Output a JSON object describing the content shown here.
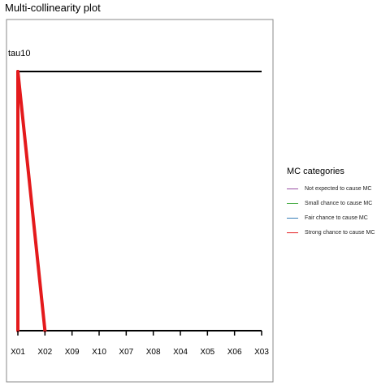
{
  "title": "Multi-collinearity plot",
  "colors": {
    "panel_border": "#888888",
    "axis": "#000000"
  },
  "chart_data": {
    "type": "line",
    "title": "Multi-collinearity plot",
    "top_label": "tau10",
    "categories": [
      "X01",
      "X02",
      "X09",
      "X10",
      "X07",
      "X08",
      "X04",
      "X05",
      "X06",
      "X03"
    ],
    "ylim": [
      0,
      1
    ],
    "grid": false,
    "legend_position": "right",
    "legend": {
      "title": "MC categories",
      "items": [
        {
          "label": "Not expected to cause MC",
          "color": "#984ea3"
        },
        {
          "label": "Small chance to cause MC",
          "color": "#4daf4a"
        },
        {
          "label": "Fair chance to cause MC",
          "color": "#377eb8"
        },
        {
          "label": "Strong chance to cause MC",
          "color": "#e41a1c"
        }
      ]
    },
    "connections": [
      {
        "from": "X01",
        "to": "X01",
        "category": "Strong chance to cause MC",
        "color": "#e41a1c"
      },
      {
        "from": "X01",
        "to": "X02",
        "category": "Strong chance to cause MC",
        "color": "#e41a1c"
      }
    ]
  }
}
